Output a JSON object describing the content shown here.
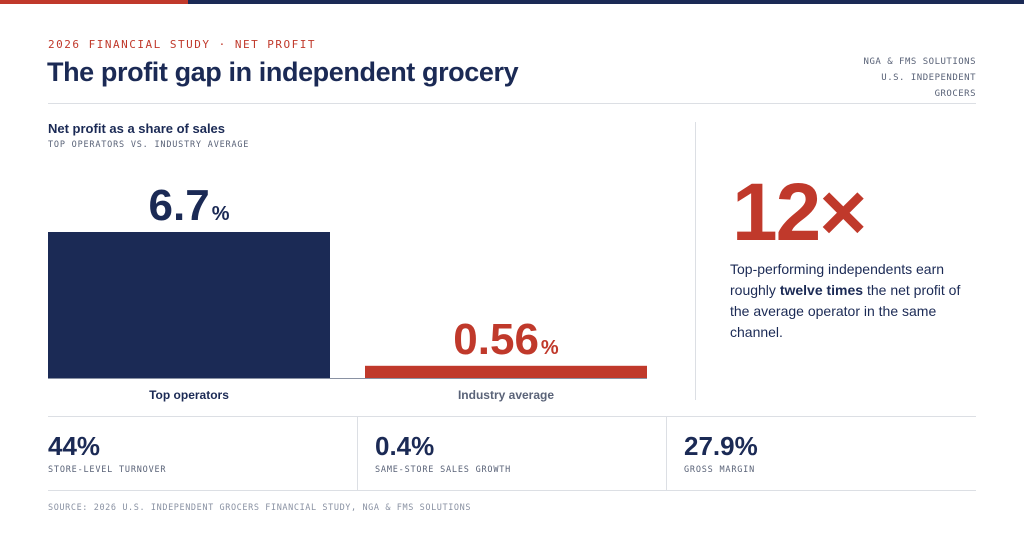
{
  "header": {
    "kicker": "2026 FINANCIAL STUDY · NET PROFIT",
    "title": "The profit gap in independent grocery",
    "source_lines": [
      "NGA & FMS SOLUTIONS",
      "U.S. INDEPENDENT",
      "GROCERS"
    ]
  },
  "colors": {
    "navy": "#1b2a55",
    "red": "#c0392b",
    "muted": "#5a6378"
  },
  "chart_data": {
    "type": "bar",
    "title": "Net profit as a share of sales",
    "subtitle": "TOP OPERATORS VS. INDUSTRY AVERAGE",
    "categories": [
      "Top operators",
      "Industry average"
    ],
    "values": [
      6.7,
      0.56
    ],
    "value_labels": [
      "6.7",
      "0.56"
    ],
    "unit": "%",
    "bar_colors": [
      "#1b2a55",
      "#c0392b"
    ],
    "grid": false,
    "legend": "none"
  },
  "callout": {
    "multiplier": "12×",
    "text_before": "Top-performing independents earn roughly ",
    "text_bold": "twelve times",
    "text_after": " the net profit of the average operator in the same channel."
  },
  "kpis": [
    {
      "value": "44%",
      "label": "STORE-LEVEL TURNOVER"
    },
    {
      "value": "0.4%",
      "label": "SAME-STORE SALES GROWTH"
    },
    {
      "value": "27.9%",
      "label": "GROSS MARGIN"
    }
  ],
  "footer": {
    "source": "SOURCE: 2026 U.S. INDEPENDENT GROCERS FINANCIAL STUDY, NGA & FMS SOLUTIONS"
  }
}
